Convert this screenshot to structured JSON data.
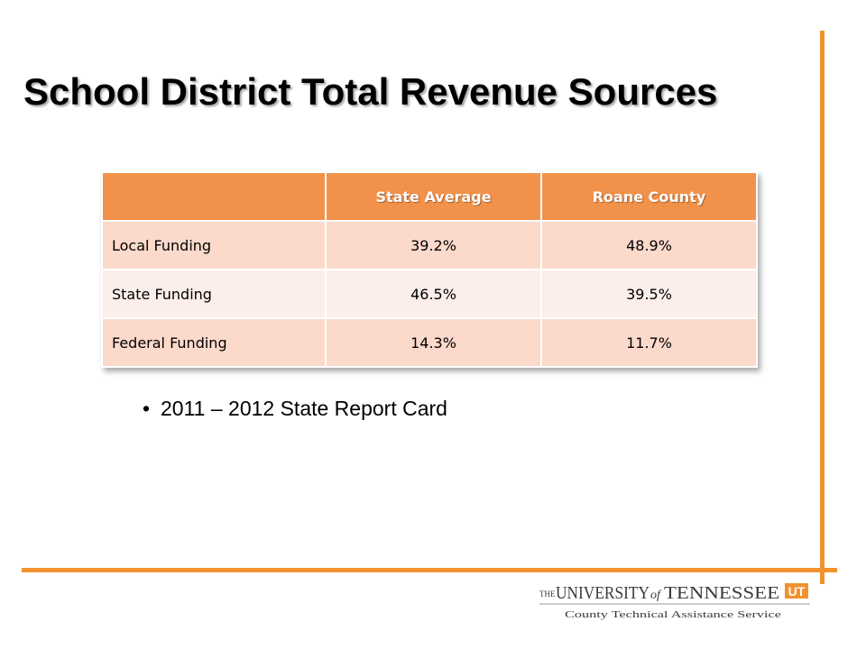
{
  "title": "School District Total Revenue Sources",
  "table": {
    "columns": [
      "State Average",
      "Roane County"
    ],
    "rows": [
      {
        "label": "Local Funding",
        "state": "39.2%",
        "county": "48.9%"
      },
      {
        "label": "State Funding",
        "state": "46.5%",
        "county": "39.5%"
      },
      {
        "label": "Federal Funding",
        "state": "14.3%",
        "county": "11.7%"
      }
    ]
  },
  "bullet": "2011 – 2012 State Report Card",
  "logo": {
    "line1_the": "THE",
    "line1_univ": "UNIVERSITY",
    "line1_of": "of",
    "line1_tenn": "TENNESSEE",
    "mark": "UT",
    "line2": "County Technical Assistance Service"
  },
  "colors": {
    "accent": "#f2922f",
    "header_fill": "#f2924a",
    "row_dark": "#fbd9cb",
    "row_light": "#fceeea"
  }
}
